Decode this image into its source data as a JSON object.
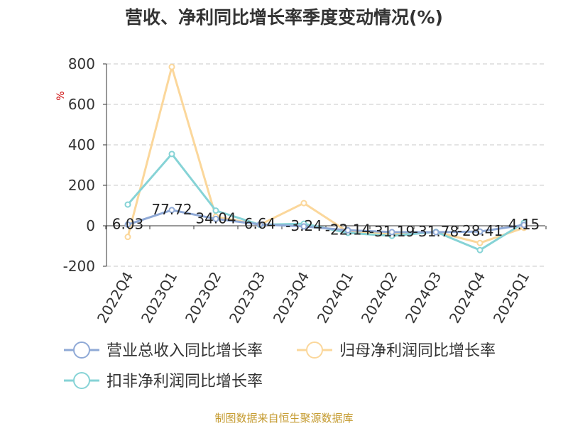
{
  "chart_data": {
    "type": "line",
    "title": "营收、净利同比增长率季度变动情况(%)",
    "ylabel": "%",
    "xlabel": "",
    "ylim": [
      -200,
      800
    ],
    "yticks": [
      -200,
      0,
      200,
      400,
      600,
      800
    ],
    "grid": true,
    "legend_position": "bottom",
    "categories": [
      "2022Q4",
      "2023Q1",
      "2023Q2",
      "2023Q3",
      "2023Q4",
      "2024Q1",
      "2024Q2",
      "2024Q3",
      "2024Q4",
      "2025Q1"
    ],
    "series": [
      {
        "name": "营业总收入同比增长率",
        "color": "#8fa9d6",
        "values": [
          6.03,
          77.72,
          34.04,
          6.64,
          -3.24,
          -22.14,
          -31.19,
          -31.78,
          -28.41,
          4.15
        ],
        "labels": [
          "6.03",
          "77.72",
          "34.04",
          "6.64",
          "-3.24",
          "-22.14",
          "-31.19",
          "-31.78",
          "-28.41",
          "4.15"
        ]
      },
      {
        "name": "归母净利润同比增长率",
        "color": "#fbd79b",
        "values": [
          -55,
          785,
          45,
          5,
          112,
          -30,
          -40,
          -30,
          -85,
          -10
        ]
      },
      {
        "name": "扣非净利润同比增长率",
        "color": "#86d3d6",
        "values": [
          105,
          355,
          75,
          5,
          10,
          -35,
          -50,
          -30,
          -120,
          15
        ]
      }
    ]
  },
  "source_text": "制图数据来自恒生聚源数据库",
  "colors": {
    "grid": "#c8c8c8",
    "axis": "#333333",
    "source": "#c49a2e",
    "unit": "#cc0000"
  }
}
